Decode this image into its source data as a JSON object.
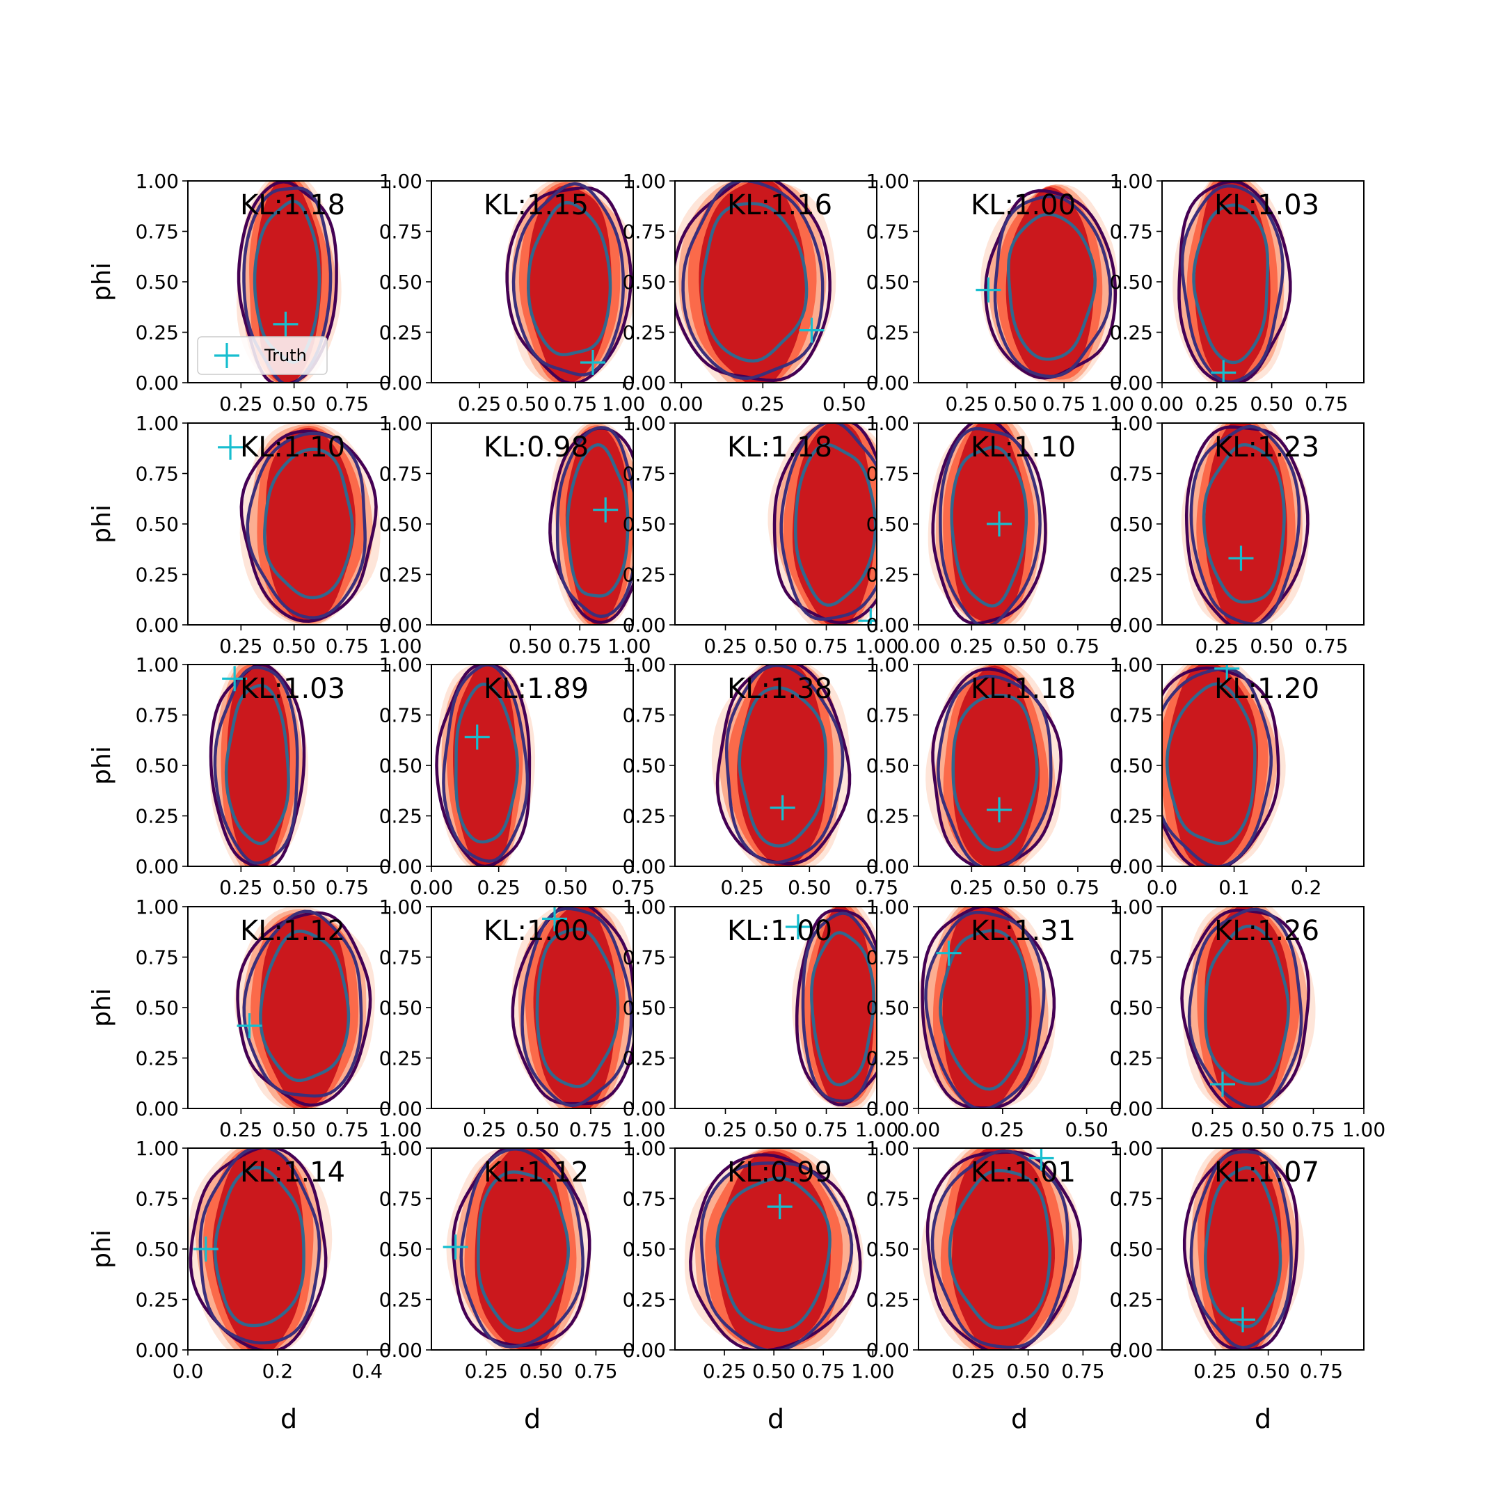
{
  "chart_data": {
    "type": "contour-grid",
    "rows": 5,
    "cols": 5,
    "xlabel": "d",
    "ylabel": "phi",
    "y_ticks": [
      "0.00",
      "0.25",
      "0.50",
      "0.75",
      "1.00"
    ],
    "ylim": [
      0,
      1
    ],
    "legend": {
      "label": "Truth",
      "position": "lower-left of first panel"
    },
    "colors": {
      "fill_levels": [
        "#fee5d9",
        "#fcae91",
        "#fb6a4a",
        "#cb181d"
      ],
      "outer_contour": "#440154",
      "mid_contour": "#3b2f7a",
      "inner_contour": "#31688e",
      "truth_marker": "#17becf"
    },
    "panels": [
      {
        "kl": "KL:1.18",
        "xlim": [
          0.0,
          0.95
        ],
        "x_ticks": [
          {
            "v": 0.25,
            "t": "0.25"
          },
          {
            "v": 0.5,
            "t": "0.50"
          },
          {
            "v": 0.75,
            "t": "0.75"
          }
        ],
        "truth": [
          0.46,
          0.29
        ],
        "post": {
          "cx": 0.47,
          "cy": 0.5,
          "rx": 0.2,
          "ry": 0.5
        }
      },
      {
        "kl": "KL:1.15",
        "xlim": [
          0.0,
          1.05
        ],
        "x_ticks": [
          {
            "v": 0.25,
            "t": "0.25"
          },
          {
            "v": 0.5,
            "t": "0.50"
          },
          {
            "v": 0.75,
            "t": "0.75"
          },
          {
            "v": 1.0,
            "t": "1.00"
          }
        ],
        "truth": [
          0.84,
          0.1
        ],
        "post": {
          "cx": 0.72,
          "cy": 0.5,
          "rx": 0.28,
          "ry": 0.48
        }
      },
      {
        "kl": "KL:1.16",
        "xlim": [
          -0.02,
          0.6
        ],
        "x_ticks": [
          {
            "v": 0.0,
            "t": "0.00"
          },
          {
            "v": 0.25,
            "t": "0.25"
          },
          {
            "v": 0.5,
            "t": "0.50"
          }
        ],
        "truth": [
          0.4,
          0.26
        ],
        "post": {
          "cx": 0.22,
          "cy": 0.5,
          "rx": 0.21,
          "ry": 0.5
        }
      },
      {
        "kl": "KL:1.00",
        "xlim": [
          0.0,
          1.04
        ],
        "x_ticks": [
          {
            "v": 0.25,
            "t": "0.25"
          },
          {
            "v": 0.5,
            "t": "0.50"
          },
          {
            "v": 0.75,
            "t": "0.75"
          },
          {
            "v": 1.0,
            "t": "1.00"
          }
        ],
        "truth": [
          0.36,
          0.46
        ],
        "post": {
          "cx": 0.68,
          "cy": 0.48,
          "rx": 0.29,
          "ry": 0.46
        }
      },
      {
        "kl": "KL:1.03",
        "xlim": [
          0.0,
          0.92
        ],
        "x_ticks": [
          {
            "v": 0.0,
            "t": "0.00"
          },
          {
            "v": 0.25,
            "t": "0.25"
          },
          {
            "v": 0.5,
            "t": "0.50"
          },
          {
            "v": 0.75,
            "t": "0.75"
          }
        ],
        "truth": [
          0.28,
          0.05
        ],
        "post": {
          "cx": 0.32,
          "cy": 0.5,
          "rx": 0.22,
          "ry": 0.5
        }
      },
      {
        "kl": "KL:1.10",
        "xlim": [
          0.0,
          0.95
        ],
        "x_ticks": [
          {
            "v": 0.25,
            "t": "0.25"
          },
          {
            "v": 0.5,
            "t": "0.50"
          },
          {
            "v": 0.75,
            "t": "0.75"
          },
          {
            "v": 1.0,
            "t": "1.00"
          }
        ],
        "truth": [
          0.2,
          0.88
        ],
        "post": {
          "cx": 0.57,
          "cy": 0.5,
          "rx": 0.27,
          "ry": 0.47
        }
      },
      {
        "kl": "KL:0.98",
        "xlim": [
          0.0,
          1.02
        ],
        "x_ticks": [
          {
            "v": 0.5,
            "t": "0.50"
          },
          {
            "v": 0.75,
            "t": "0.75"
          },
          {
            "v": 1.0,
            "t": "1.00"
          }
        ],
        "truth": [
          0.88,
          0.57
        ],
        "post": {
          "cx": 0.84,
          "cy": 0.5,
          "rx": 0.2,
          "ry": 0.48
        }
      },
      {
        "kl": "KL:1.18",
        "xlim": [
          0.0,
          1.0
        ],
        "x_ticks": [
          {
            "v": 0.25,
            "t": "0.25"
          },
          {
            "v": 0.5,
            "t": "0.50"
          },
          {
            "v": 0.75,
            "t": "0.75"
          },
          {
            "v": 1.0,
            "t": "1.00"
          }
        ],
        "truth": [
          0.97,
          0.02
        ],
        "post": {
          "cx": 0.79,
          "cy": 0.5,
          "rx": 0.26,
          "ry": 0.5
        }
      },
      {
        "kl": "KL:1.10",
        "xlim": [
          0.0,
          0.95
        ],
        "x_ticks": [
          {
            "v": 0.0,
            "t": "0.00"
          },
          {
            "v": 0.25,
            "t": "0.25"
          },
          {
            "v": 0.5,
            "t": "0.50"
          },
          {
            "v": 0.75,
            "t": "0.75"
          }
        ],
        "truth": [
          0.38,
          0.5
        ],
        "post": {
          "cx": 0.33,
          "cy": 0.5,
          "rx": 0.23,
          "ry": 0.5
        }
      },
      {
        "kl": "KL:1.23",
        "xlim": [
          0.0,
          0.92
        ],
        "x_ticks": [
          {
            "v": 0.25,
            "t": "0.25"
          },
          {
            "v": 0.5,
            "t": "0.50"
          },
          {
            "v": 0.75,
            "t": "0.75"
          }
        ],
        "truth": [
          0.36,
          0.33
        ],
        "post": {
          "cx": 0.38,
          "cy": 0.5,
          "rx": 0.24,
          "ry": 0.5
        }
      },
      {
        "kl": "KL:1.03",
        "xlim": [
          0.0,
          0.95
        ],
        "x_ticks": [
          {
            "v": 0.25,
            "t": "0.25"
          },
          {
            "v": 0.5,
            "t": "0.50"
          },
          {
            "v": 0.75,
            "t": "0.75"
          }
        ],
        "truth": [
          0.22,
          0.93
        ],
        "post": {
          "cx": 0.33,
          "cy": 0.5,
          "rx": 0.19,
          "ry": 0.5
        }
      },
      {
        "kl": "KL:1.89",
        "xlim": [
          0.0,
          0.75
        ],
        "x_ticks": [
          {
            "v": 0.0,
            "t": "0.00"
          },
          {
            "v": 0.25,
            "t": "0.25"
          },
          {
            "v": 0.5,
            "t": "0.50"
          },
          {
            "v": 0.75,
            "t": "0.75"
          }
        ],
        "truth": [
          0.17,
          0.64
        ],
        "post": {
          "cx": 0.2,
          "cy": 0.5,
          "rx": 0.15,
          "ry": 0.5
        }
      },
      {
        "kl": "KL:1.38",
        "xlim": [
          0.0,
          0.75
        ],
        "x_ticks": [
          {
            "v": 0.25,
            "t": "0.25"
          },
          {
            "v": 0.5,
            "t": "0.50"
          },
          {
            "v": 0.75,
            "t": "0.75"
          }
        ],
        "truth": [
          0.4,
          0.29
        ],
        "post": {
          "cx": 0.4,
          "cy": 0.5,
          "rx": 0.21,
          "ry": 0.5
        }
      },
      {
        "kl": "KL:1.18",
        "xlim": [
          0.0,
          0.95
        ],
        "x_ticks": [
          {
            "v": 0.25,
            "t": "0.25"
          },
          {
            "v": 0.5,
            "t": "0.50"
          },
          {
            "v": 0.75,
            "t": "0.75"
          }
        ],
        "truth": [
          0.38,
          0.28
        ],
        "post": {
          "cx": 0.36,
          "cy": 0.48,
          "rx": 0.26,
          "ry": 0.49
        }
      },
      {
        "kl": "KL:1.20",
        "xlim": [
          0.0,
          0.28
        ],
        "x_ticks": [
          {
            "v": 0.0,
            "t": "0.0"
          },
          {
            "v": 0.1,
            "t": "0.1"
          },
          {
            "v": 0.2,
            "t": "0.2"
          }
        ],
        "truth": [
          0.09,
          0.98
        ],
        "post": {
          "cx": 0.07,
          "cy": 0.5,
          "rx": 0.08,
          "ry": 0.5
        }
      },
      {
        "kl": "KL:1.12",
        "xlim": [
          0.0,
          0.95
        ],
        "x_ticks": [
          {
            "v": 0.25,
            "t": "0.25"
          },
          {
            "v": 0.5,
            "t": "0.50"
          },
          {
            "v": 0.75,
            "t": "0.75"
          },
          {
            "v": 1.0,
            "t": "1.00"
          }
        ],
        "truth": [
          0.29,
          0.41
        ],
        "post": {
          "cx": 0.55,
          "cy": 0.5,
          "rx": 0.27,
          "ry": 0.47
        }
      },
      {
        "kl": "KL:1.00",
        "xlim": [
          0.0,
          0.95
        ],
        "x_ticks": [
          {
            "v": 0.25,
            "t": "0.25"
          },
          {
            "v": 0.5,
            "t": "0.50"
          },
          {
            "v": 0.75,
            "t": "0.75"
          },
          {
            "v": 1.0,
            "t": "1.00"
          }
        ],
        "truth": [
          0.58,
          0.94
        ],
        "post": {
          "cx": 0.68,
          "cy": 0.5,
          "rx": 0.25,
          "ry": 0.5
        }
      },
      {
        "kl": "KL:1.00",
        "xlim": [
          0.0,
          1.0
        ],
        "x_ticks": [
          {
            "v": 0.25,
            "t": "0.25"
          },
          {
            "v": 0.5,
            "t": "0.50"
          },
          {
            "v": 0.75,
            "t": "0.75"
          },
          {
            "v": 1.0,
            "t": "1.00"
          }
        ],
        "truth": [
          0.61,
          0.9
        ],
        "post": {
          "cx": 0.83,
          "cy": 0.5,
          "rx": 0.2,
          "ry": 0.48
        }
      },
      {
        "kl": "KL:1.31",
        "xlim": [
          0.0,
          0.6
        ],
        "x_ticks": [
          {
            "v": 0.0,
            "t": "0.00"
          },
          {
            "v": 0.25,
            "t": "0.25"
          },
          {
            "v": 0.5,
            "t": "0.50"
          }
        ],
        "truth": [
          0.09,
          0.77
        ],
        "post": {
          "cx": 0.2,
          "cy": 0.5,
          "rx": 0.17,
          "ry": 0.5
        }
      },
      {
        "kl": "KL:1.26",
        "xlim": [
          0.0,
          1.0
        ],
        "x_ticks": [
          {
            "v": 0.25,
            "t": "0.25"
          },
          {
            "v": 0.5,
            "t": "0.50"
          },
          {
            "v": 0.75,
            "t": "0.75"
          },
          {
            "v": 1.0,
            "t": "1.00"
          }
        ],
        "truth": [
          0.3,
          0.12
        ],
        "post": {
          "cx": 0.42,
          "cy": 0.5,
          "rx": 0.27,
          "ry": 0.5
        }
      },
      {
        "kl": "KL:1.14",
        "xlim": [
          0.0,
          0.45
        ],
        "x_ticks": [
          {
            "v": 0.0,
            "t": "0.0"
          },
          {
            "v": 0.2,
            "t": "0.2"
          },
          {
            "v": 0.4,
            "t": "0.4"
          }
        ],
        "truth": [
          0.04,
          0.5
        ],
        "post": {
          "cx": 0.16,
          "cy": 0.5,
          "rx": 0.13,
          "ry": 0.5
        }
      },
      {
        "kl": "KL:1.12",
        "xlim": [
          0.0,
          0.92
        ],
        "x_ticks": [
          {
            "v": 0.25,
            "t": "0.25"
          },
          {
            "v": 0.5,
            "t": "0.50"
          },
          {
            "v": 0.75,
            "t": "0.75"
          }
        ],
        "truth": [
          0.11,
          0.51
        ],
        "post": {
          "cx": 0.41,
          "cy": 0.5,
          "rx": 0.27,
          "ry": 0.5
        }
      },
      {
        "kl": "KL:0.99",
        "xlim": [
          0.0,
          1.02
        ],
        "x_ticks": [
          {
            "v": 0.25,
            "t": "0.25"
          },
          {
            "v": 0.5,
            "t": "0.50"
          },
          {
            "v": 0.75,
            "t": "0.75"
          },
          {
            "v": 1.0,
            "t": "1.00"
          }
        ],
        "truth": [
          0.53,
          0.71
        ],
        "post": {
          "cx": 0.5,
          "cy": 0.48,
          "rx": 0.37,
          "ry": 0.48
        }
      },
      {
        "kl": "KL:1.01",
        "xlim": [
          0.0,
          0.92
        ],
        "x_ticks": [
          {
            "v": 0.25,
            "t": "0.25"
          },
          {
            "v": 0.5,
            "t": "0.50"
          },
          {
            "v": 0.75,
            "t": "0.75"
          }
        ],
        "truth": [
          0.56,
          0.95
        ],
        "post": {
          "cx": 0.38,
          "cy": 0.5,
          "rx": 0.3,
          "ry": 0.5
        }
      },
      {
        "kl": "KL:1.07",
        "xlim": [
          0.0,
          0.95
        ],
        "x_ticks": [
          {
            "v": 0.25,
            "t": "0.25"
          },
          {
            "v": 0.5,
            "t": "0.50"
          },
          {
            "v": 0.75,
            "t": "0.75"
          }
        ],
        "truth": [
          0.38,
          0.15
        ],
        "post": {
          "cx": 0.38,
          "cy": 0.5,
          "rx": 0.23,
          "ry": 0.5
        }
      }
    ]
  }
}
